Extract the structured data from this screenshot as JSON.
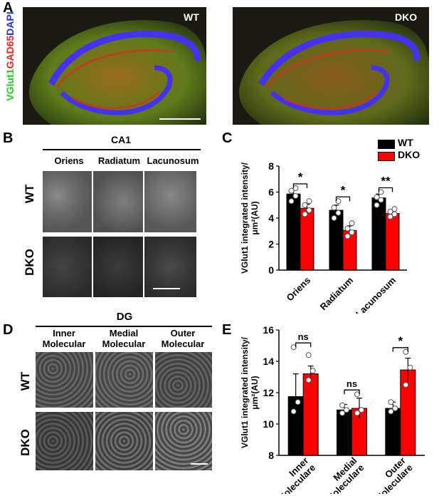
{
  "panels": {
    "A": "A",
    "B": "B",
    "C": "C",
    "D": "D",
    "E": "E"
  },
  "panel_a": {
    "stain_label": [
      "VGlut1",
      "GAD65",
      "DAPI"
    ],
    "stain_colors": [
      "#22cc22",
      "#ee2222",
      "#2233ee"
    ],
    "image_wt_label": "WT",
    "image_dko_label": "DKO"
  },
  "panel_b": {
    "region": "CA1",
    "columns": [
      "Oriens",
      "Radiatum",
      "Lacunosum"
    ],
    "rows": [
      "WT",
      "DKO"
    ]
  },
  "panel_d": {
    "region": "DG",
    "columns": [
      "Inner\nMolecular",
      "Medial\nMolecular",
      "Outer\nMolecular"
    ],
    "rows": [
      "WT",
      "DKO"
    ]
  },
  "legend": {
    "items": [
      {
        "label": "WT",
        "color": "#000000"
      },
      {
        "label": "DKO",
        "color": "#ff0000"
      }
    ]
  },
  "chart_data": [
    {
      "panel": "C",
      "type": "bar",
      "ylabel": "VGlut1 integrated intensity/\nμm²(AU)",
      "categories": [
        "Oriens",
        "Radiatum",
        "Lacunosum"
      ],
      "ylim": [
        0,
        8
      ],
      "yticks": [
        0,
        2,
        4,
        6,
        8
      ],
      "series": [
        {
          "name": "WT",
          "color": "#000000",
          "values": [
            5.85,
            4.6,
            5.55
          ],
          "errors": [
            0.3,
            0.4,
            0.3
          ],
          "points": [
            [
              5.3,
              5.7,
              6.1,
              6.3
            ],
            [
              4.0,
              4.4,
              4.8,
              5.3
            ],
            [
              5.0,
              5.4,
              5.6,
              6.0
            ]
          ]
        },
        {
          "name": "DKO",
          "color": "#ff0000",
          "values": [
            4.75,
            3.05,
            4.35
          ],
          "errors": [
            0.3,
            0.35,
            0.2
          ],
          "points": [
            [
              4.3,
              4.6,
              5.0,
              5.3
            ],
            [
              2.6,
              2.9,
              3.2,
              3.6
            ],
            [
              4.1,
              4.3,
              4.5,
              4.7
            ]
          ]
        }
      ],
      "significance": [
        "*",
        "*",
        "**"
      ]
    },
    {
      "panel": "E",
      "type": "bar",
      "ylabel": "VGlut1 integrated intensity/\nμm²(AU)",
      "categories": [
        "Inner\nMoleculare",
        "Medial\nMoleculare",
        "Outer\nMoleculare"
      ],
      "ylim": [
        8,
        16
      ],
      "yticks": [
        8,
        10,
        12,
        14,
        16
      ],
      "series": [
        {
          "name": "WT",
          "color": "#000000",
          "values": [
            11.75,
            10.9,
            11.0
          ],
          "errors": [
            1.45,
            0.35,
            0.4
          ],
          "points": [
            [
              10.8,
              11.4,
              14.9
            ],
            [
              10.7,
              10.9,
              11.2
            ],
            [
              10.8,
              11.0,
              11.4
            ]
          ]
        },
        {
          "name": "DKO",
          "color": "#ff0000",
          "values": [
            13.2,
            11.0,
            13.45
          ],
          "errors": [
            0.5,
            0.65,
            0.75
          ],
          "points": [
            [
              12.8,
              13.4,
              14.4
            ],
            [
              10.7,
              10.9,
              11.9
            ],
            [
              12.5,
              13.6,
              14.6
            ]
          ]
        }
      ],
      "significance": [
        "ns",
        "ns",
        "*"
      ]
    }
  ]
}
